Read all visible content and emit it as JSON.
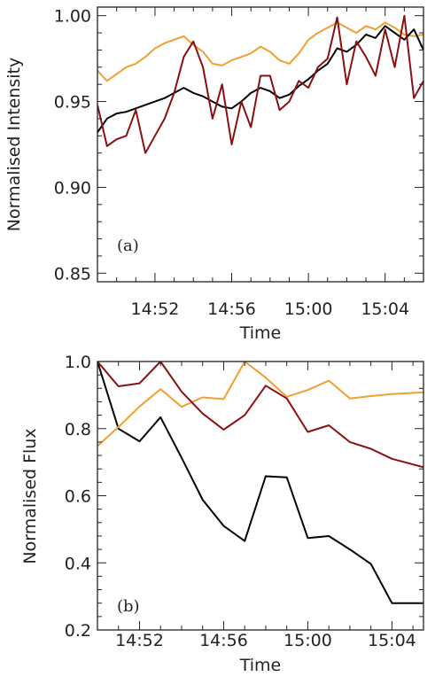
{
  "chart_data": [
    {
      "type": "line",
      "panel_label": "(a)",
      "xlabel": "Time",
      "ylabel": "Normalised Intensity",
      "x_unit": "minutes since 14:49",
      "xlim": [
        0,
        17
      ],
      "ylim": [
        0.845,
        1.005
      ],
      "xticks": [
        {
          "value": 3,
          "label": "14:52"
        },
        {
          "value": 7,
          "label": "14:56"
        },
        {
          "value": 11,
          "label": "15:00"
        },
        {
          "value": 15,
          "label": "15:04"
        }
      ],
      "yticks": [
        {
          "value": 0.85,
          "label": "0.85"
        },
        {
          "value": 0.9,
          "label": "0.90"
        },
        {
          "value": 0.95,
          "label": "0.95"
        },
        {
          "value": 1.0,
          "label": "1.00"
        }
      ],
      "x": [
        0,
        0.5,
        1,
        1.5,
        2,
        2.5,
        3,
        3.5,
        4,
        4.5,
        5,
        5.5,
        6,
        6.5,
        7,
        7.5,
        8,
        8.5,
        9,
        9.5,
        10,
        10.5,
        11,
        11.5,
        12,
        12.5,
        13,
        13.5,
        14,
        14.5,
        15,
        15.5,
        16,
        16.5,
        17
      ],
      "series": [
        {
          "color": "#f0a030",
          "values": [
            0.968,
            0.962,
            0.966,
            0.97,
            0.972,
            0.976,
            0.981,
            0.984,
            0.986,
            0.988,
            0.983,
            0.979,
            0.972,
            0.971,
            0.974,
            0.976,
            0.978,
            0.982,
            0.979,
            0.974,
            0.972,
            0.978,
            0.986,
            0.99,
            0.993,
            0.996,
            0.993,
            0.99,
            0.994,
            0.992,
            0.996,
            0.993,
            0.989,
            0.988,
            0.989
          ]
        },
        {
          "color": "#000000",
          "values": [
            0.932,
            0.94,
            0.943,
            0.944,
            0.946,
            0.948,
            0.95,
            0.952,
            0.955,
            0.958,
            0.955,
            0.953,
            0.95,
            0.947,
            0.946,
            0.95,
            0.955,
            0.958,
            0.956,
            0.952,
            0.954,
            0.959,
            0.963,
            0.968,
            0.972,
            0.981,
            0.979,
            0.983,
            0.989,
            0.987,
            0.994,
            0.99,
            0.986,
            0.992,
            0.98
          ]
        },
        {
          "color": "#8b1010",
          "values": [
            0.948,
            0.924,
            0.928,
            0.93,
            0.945,
            0.92,
            0.93,
            0.94,
            0.955,
            0.976,
            0.985,
            0.97,
            0.94,
            0.96,
            0.925,
            0.95,
            0.935,
            0.965,
            0.965,
            0.945,
            0.95,
            0.962,
            0.958,
            0.97,
            0.975,
            0.999,
            0.96,
            0.985,
            0.976,
            0.965,
            0.992,
            0.97,
            1.0,
            0.952,
            0.962
          ]
        }
      ]
    },
    {
      "type": "line",
      "panel_label": "(b)",
      "xlabel": "Time",
      "ylabel": "Normalised Flux",
      "x_unit": "minutes since 14:49",
      "xlim": [
        1,
        16.5
      ],
      "ylim": [
        0.2,
        1.0
      ],
      "xticks": [
        {
          "value": 3,
          "label": "14:52"
        },
        {
          "value": 7,
          "label": "14:56"
        },
        {
          "value": 11,
          "label": "15:00"
        },
        {
          "value": 15,
          "label": "15:04"
        }
      ],
      "yticks": [
        {
          "value": 0.2,
          "label": "0.2"
        },
        {
          "value": 0.4,
          "label": "0.4"
        },
        {
          "value": 0.6,
          "label": "0.6"
        },
        {
          "value": 0.8,
          "label": "0.8"
        },
        {
          "value": 1.0,
          "label": "1.0"
        }
      ],
      "x": [
        1,
        2,
        3,
        4,
        5,
        6,
        7,
        8,
        9,
        10,
        11,
        12,
        13,
        14,
        15,
        16.5
      ],
      "series": [
        {
          "color": "#000000",
          "values": [
            1.0,
            0.8,
            0.762,
            0.834,
            0.713,
            0.588,
            0.51,
            0.465,
            0.658,
            0.655,
            0.474,
            0.48,
            0.44,
            0.397,
            0.28,
            0.28
          ]
        },
        {
          "color": "#f0a030",
          "values": [
            0.748,
            0.805,
            0.866,
            0.918,
            0.865,
            0.893,
            0.888,
            1.0,
            0.952,
            0.895,
            0.915,
            0.943,
            0.89,
            0.897,
            0.903,
            0.908
          ]
        },
        {
          "color": "#8b1010",
          "values": [
            1.0,
            0.926,
            0.935,
            1.0,
            0.91,
            0.845,
            0.797,
            0.84,
            0.928,
            0.89,
            0.79,
            0.81,
            0.76,
            0.74,
            0.71,
            0.685
          ]
        }
      ]
    }
  ]
}
